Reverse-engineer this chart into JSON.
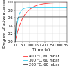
{
  "xlabel": "Time (s)",
  "ylabel": "Degree of advancement",
  "xlim": [
    0,
    350
  ],
  "ylim": [
    0,
    1.0
  ],
  "xticks": [
    0,
    50,
    100,
    150,
    200,
    250,
    300,
    350
  ],
  "yticks": [
    0.0,
    0.2,
    0.4,
    0.6,
    0.8,
    1.0
  ],
  "series": [
    {
      "label": "400 °C, 60 mbar",
      "color": "#ff3333",
      "a": 0.98,
      "b": 0.018
    },
    {
      "label": "300 °C, 60 mbar",
      "color": "#33ccee",
      "a": 0.87,
      "b": 0.055
    },
    {
      "label": "200 °C, 60 mbar",
      "color": "#444444",
      "a": 0.62,
      "b": 0.18
    }
  ],
  "grid_color": "#cccccc",
  "bg_color": "#ffffff",
  "legend_fontsize": 3.8,
  "axis_label_fontsize": 4.5,
  "tick_fontsize": 4.0
}
